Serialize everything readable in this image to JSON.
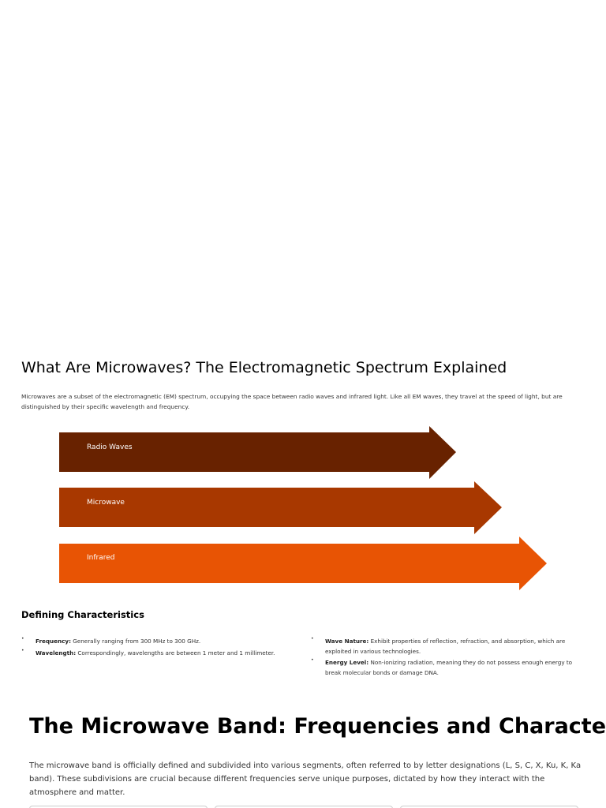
{
  "section1": {
    "title": "What Are Microwaves? The Electromagnetic Spectrum Explained",
    "intro": "Microwaves are a subset of the electromagnetic (EM) spectrum, occupying the space between radio waves and infrared light. Like all EM waves, they travel at the speed of light, but are distinguished by their specific wavelength and frequency.",
    "spectrum": [
      {
        "label": "Radio Waves",
        "color": "#682200"
      },
      {
        "label": "Microwave",
        "color": "#a83800"
      },
      {
        "label": "Infrared",
        "color": "#e85404"
      }
    ],
    "subheading": "Defining Characteristics",
    "characteristics_left": [
      {
        "term": "Frequency:",
        "text": "Generally ranging from 300 MHz to 300 GHz."
      },
      {
        "term": "Wavelength:",
        "text": "Correspondingly, wavelengths are between 1 meter and 1 millimeter."
      }
    ],
    "characteristics_right": [
      {
        "term": "Wave Nature:",
        "text": "Exhibit properties of reflection, refraction, and absorption, which are exploited in various technologies."
      },
      {
        "term": "Energy Level:",
        "text": "Non-ionizing radiation, meaning they do not possess enough energy to break molecular bonds or damage DNA."
      }
    ]
  },
  "section2": {
    "title": "The Microwave Band: Frequencies and Characteristics",
    "intro": "The microwave band is officially defined and subdivided into various segments, often referred to by letter designations (L, S, C, X, Ku, K, Ka band). These subdivisions are crucial because different frequencies serve unique purposes, dictated by how they interact with the atmosphere and matter."
  }
}
